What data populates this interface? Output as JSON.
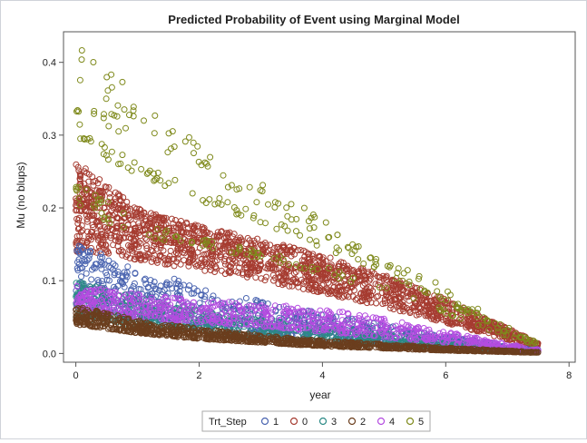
{
  "chart_data": {
    "type": "scatter",
    "title": "Predicted Probability of Event using Marginal Model",
    "xlabel": "year",
    "ylabel": "Mu (no blups)",
    "xlim": [
      -0.2,
      8.1
    ],
    "ylim": [
      -0.012,
      0.442
    ],
    "x_ticks": [
      0,
      2,
      4,
      6,
      8
    ],
    "y_ticks": [
      0.0,
      0.1,
      0.2,
      0.3,
      0.4
    ],
    "x_tick_labels": [
      "0",
      "2",
      "4",
      "6",
      "8"
    ],
    "y_tick_labels": [
      "0.0",
      "0.1",
      "0.2",
      "0.3",
      "0.4"
    ],
    "marker": "open-circle",
    "legend": {
      "title": "Trt_Step",
      "position": "bottom"
    },
    "series": [
      {
        "name": "1",
        "color": "#4a64b0",
        "x_max": 7.5,
        "bands": [
          {
            "x": [
              0,
              1,
              2,
              3,
              4,
              5,
              6,
              7,
              7.5
            ],
            "low": [
              0.06,
              0.047,
              0.036,
              0.028,
              0.021,
              0.015,
              0.009,
              0.004,
              0.002
            ],
            "high": [
              0.15,
              0.118,
              0.093,
              0.072,
              0.055,
              0.04,
              0.025,
              0.011,
              0.006
            ]
          }
        ]
      },
      {
        "name": "0",
        "color": "#a63c31",
        "x_max": 7.5,
        "bands": [
          {
            "x": [
              0,
              1,
              2,
              3,
              4,
              5,
              6,
              7,
              7.5
            ],
            "low": [
              0.14,
              0.128,
              0.115,
              0.1,
              0.083,
              0.064,
              0.042,
              0.019,
              0.008
            ],
            "high": [
              0.265,
              0.2,
              0.175,
              0.158,
              0.135,
              0.108,
              0.075,
              0.035,
              0.014
            ]
          }
        ]
      },
      {
        "name": "3",
        "color": "#2c8a86",
        "x_max": 7.5,
        "bands": [
          {
            "x": [
              0,
              1,
              2,
              3,
              4,
              5,
              6,
              7,
              7.5
            ],
            "low": [
              0.05,
              0.037,
              0.028,
              0.021,
              0.016,
              0.011,
              0.007,
              0.003,
              0.002
            ],
            "high": [
              0.1,
              0.077,
              0.06,
              0.047,
              0.037,
              0.028,
              0.018,
              0.008,
              0.004
            ]
          }
        ]
      },
      {
        "name": "2",
        "color": "#6b3e1e",
        "x_max": 7.5,
        "bands": [
          {
            "x": [
              0,
              1,
              2,
              3,
              4,
              5,
              6,
              7,
              7.5
            ],
            "low": [
              0.04,
              0.028,
              0.02,
              0.015,
              0.01,
              0.007,
              0.004,
              0.002,
              0.001
            ],
            "high": [
              0.065,
              0.046,
              0.034,
              0.025,
              0.018,
              0.013,
              0.008,
              0.004,
              0.002
            ]
          }
        ]
      },
      {
        "name": "4",
        "color": "#b44ce0",
        "x_max": 7.5,
        "bands": [
          {
            "x": [
              0,
              1,
              2,
              3,
              4,
              5,
              6,
              7,
              7.5
            ],
            "low": [
              0.06,
              0.05,
              0.043,
              0.037,
              0.03,
              0.022,
              0.014,
              0.006,
              0.003
            ],
            "high": [
              0.095,
              0.082,
              0.073,
              0.068,
              0.062,
              0.048,
              0.03,
              0.013,
              0.006
            ]
          }
        ]
      },
      {
        "name": "5",
        "color": "#7f8a1c",
        "x_max": 7.5,
        "bands": [
          {
            "x": [
              0,
              1,
              2,
              3,
              4,
              5,
              6,
              7,
              7.5
            ],
            "low": [
              0.33,
              0.29,
              0.248,
              0.205,
              0.163,
              0.12,
              0.075,
              0.03,
              0.014
            ],
            "high": [
              0.43,
              0.355,
              0.29,
              0.235,
              0.19,
              0.14,
              0.09,
              0.036,
              0.018
            ]
          },
          {
            "x": [
              0,
              1,
              2,
              3,
              4,
              5,
              6,
              7,
              7.5
            ],
            "low": [
              0.29,
              0.245,
              0.21,
              0.178,
              0.145,
              0.11,
              0.07,
              0.028,
              0.013
            ],
            "high": [
              0.32,
              0.26,
              0.225,
              0.19,
              0.155,
              0.118,
              0.075,
              0.03,
              0.014
            ]
          },
          {
            "x": [
              0,
              1,
              2,
              3,
              4,
              5,
              6,
              7,
              7.5
            ],
            "low": [
              0.2,
              0.162,
              0.148,
              0.13,
              0.11,
              0.085,
              0.055,
              0.023,
              0.011
            ],
            "high": [
              0.24,
              0.18,
              0.16,
              0.14,
              0.12,
              0.092,
              0.06,
              0.025,
              0.012
            ]
          }
        ]
      }
    ]
  }
}
